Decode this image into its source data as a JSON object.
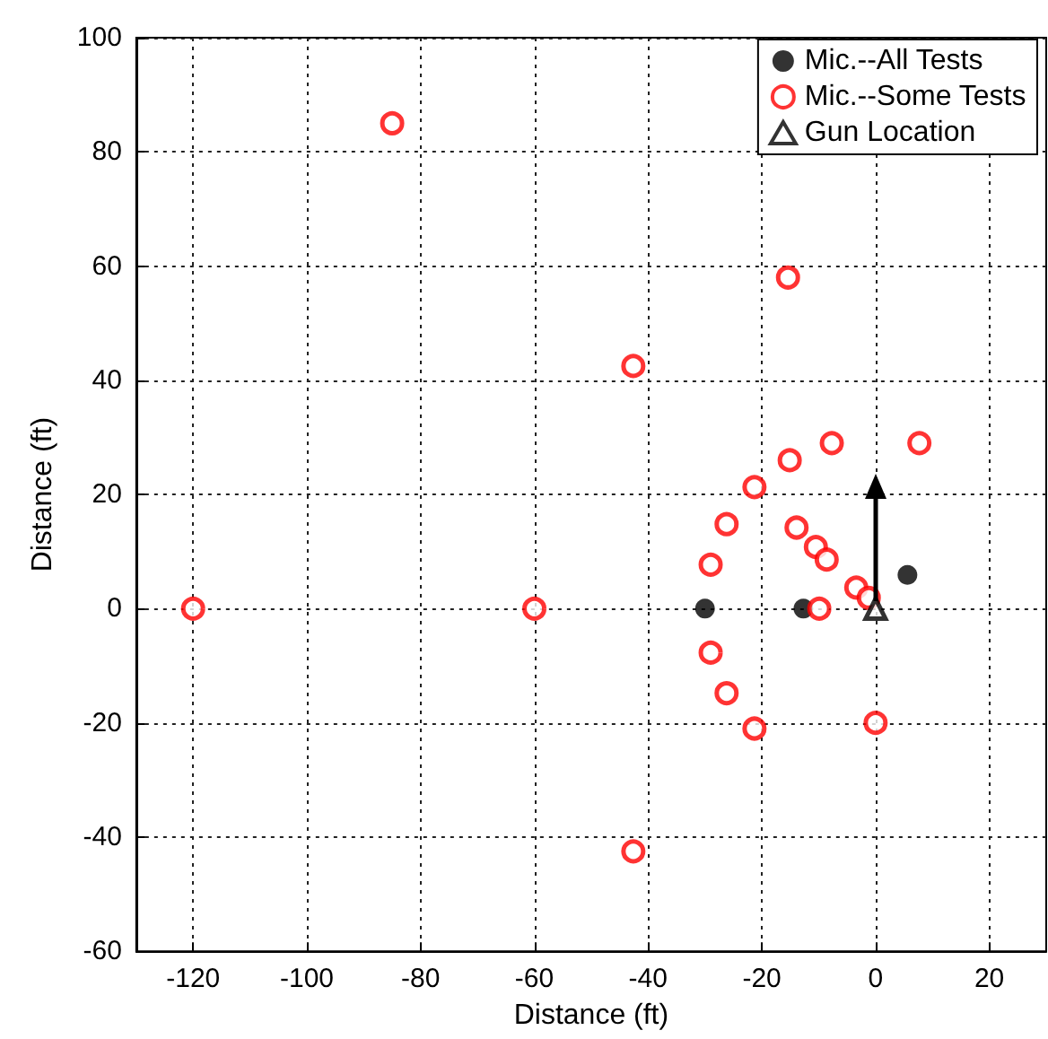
{
  "chart_data": {
    "type": "scatter",
    "xlabel": "Distance (ft)",
    "ylabel": "Distance (ft)",
    "xlim": [
      -130,
      30
    ],
    "xticks": [
      -120,
      -100,
      -80,
      -60,
      -40,
      -20,
      0,
      20
    ],
    "ylim": [
      -60,
      100
    ],
    "yticks": [
      -60,
      -40,
      -20,
      0,
      20,
      40,
      60,
      80,
      100
    ],
    "grid": true,
    "legend": "top right",
    "series": [
      {
        "name": "Mic.--All Tests",
        "color": "#000000",
        "marker": "circle",
        "x": [
          -30,
          -12.7,
          5.6
        ],
        "values": [
          0,
          0,
          5.9
        ]
      },
      {
        "name": "Mic.--Some Tests",
        "color": "#ff0000",
        "marker": "circle",
        "x": [
          -85,
          -15.4,
          -42.6,
          -15.1,
          -7.7,
          7.7,
          -21.3,
          -26.2,
          -13.9,
          -29,
          -10.5,
          -8.6,
          -3.4,
          -1.2,
          -120,
          -60,
          -9.9,
          -29,
          -26.2,
          -21.3,
          0,
          -42.6
        ],
        "values": [
          85,
          58,
          42.5,
          26,
          29,
          29,
          21.3,
          14.8,
          14.2,
          7.7,
          10.8,
          8.6,
          3.7,
          1.9,
          0,
          0,
          0,
          -7.7,
          -14.8,
          -21,
          -20,
          -42.5
        ]
      },
      {
        "name": "Gun Location",
        "color": "#000000",
        "marker": "triangle",
        "x": [
          0
        ],
        "values": [
          0
        ]
      }
    ]
  }
}
